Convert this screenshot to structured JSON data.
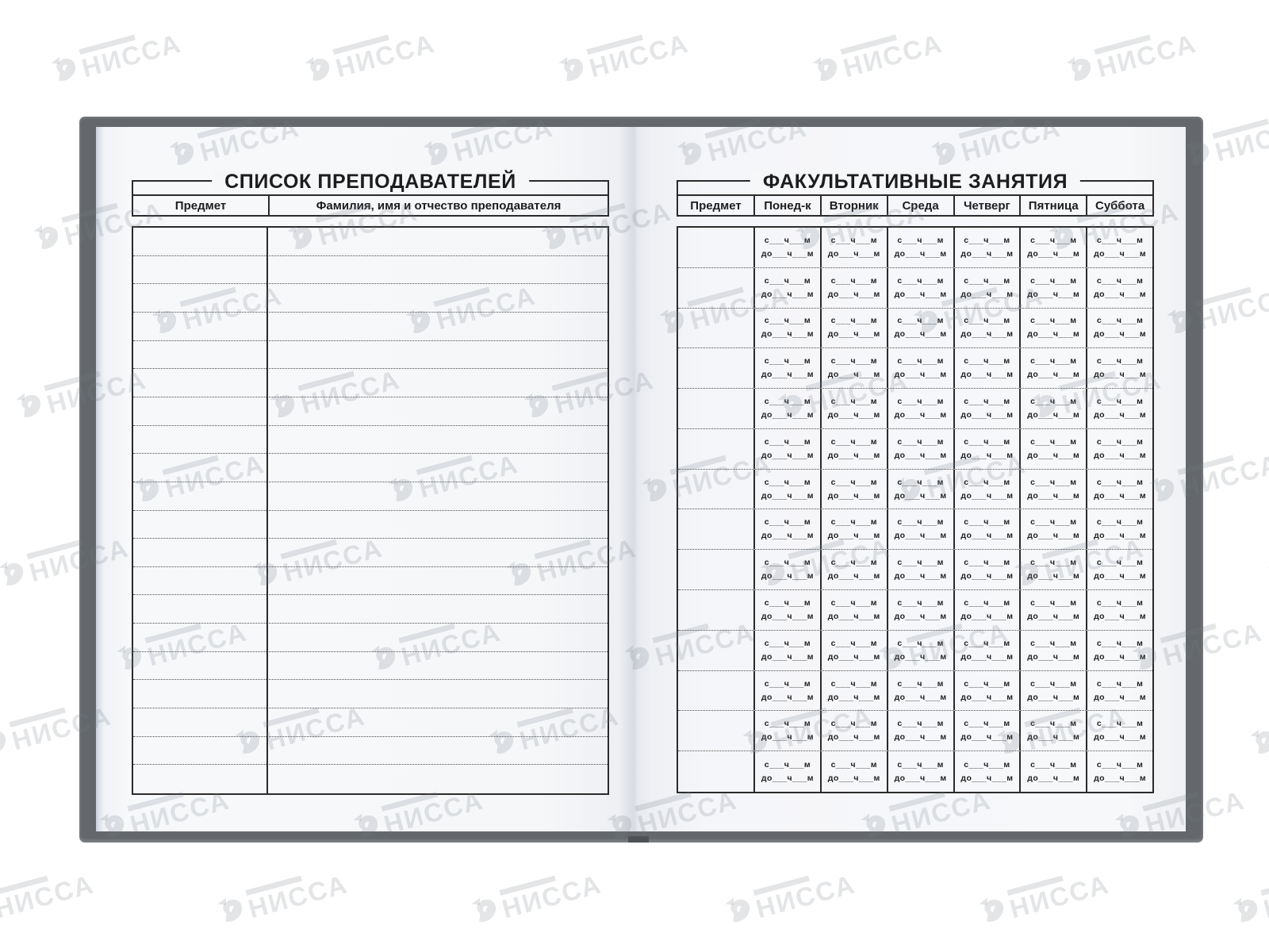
{
  "left_page": {
    "title": "СПИСОК ПРЕПОДАВАТЕЛЕЙ",
    "columns": [
      "Предмет",
      "Фамилия, имя и отчество преподавателя"
    ],
    "row_count": 20
  },
  "right_page": {
    "title": "ФАКУЛЬТАТИВНЫЕ ЗАНЯТИЯ",
    "columns": [
      "Предмет",
      "Понед-к",
      "Вторник",
      "Среда",
      "Четверг",
      "Пятница",
      "Суббота"
    ],
    "row_count": 14,
    "time_cell": {
      "from": "с___ч___м",
      "to": "до___ч___м"
    }
  },
  "watermark": {
    "brand": "НИССА"
  },
  "colors": {
    "cover": "#64686c",
    "page": "#f6f7f9",
    "ink": "#222222",
    "rule": "#2b2b2b",
    "watermark": "#878d95"
  }
}
